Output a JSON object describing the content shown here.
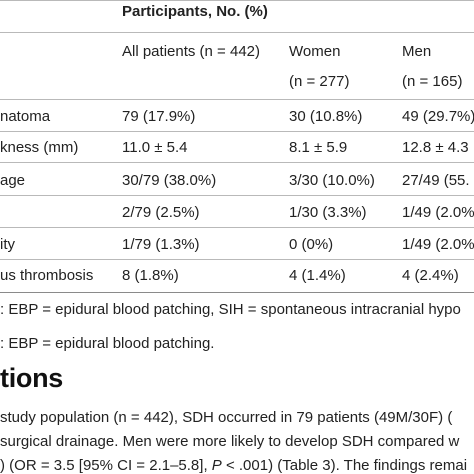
{
  "table": {
    "header_group": "Participants, No. (%)",
    "columns": {
      "all": "All patients (n = 442)",
      "women": "Women",
      "women_n": "(n = 277)",
      "men": "Men",
      "men_n": "(n = 165)"
    },
    "rows": [
      {
        "label": "natoma",
        "all": "79 (17.9%)",
        "women": "30 (10.8%)",
        "men": "49 (29.7%)"
      },
      {
        "label": "kness (mm)",
        "all": "11.0 ± 5.4",
        "women": "8.1 ± 5.9",
        "men": "12.8 ± 4.3"
      },
      {
        "label": "age",
        "all": "30/79 (38.0%)",
        "women": "3/30 (10.0%)",
        "men": "27/49 (55."
      },
      {
        "label": "",
        "all": "2/79 (2.5%)",
        "women": "1/30 (3.3%)",
        "men": "1/49 (2.0%"
      },
      {
        "label": "ity",
        "all": "1/79 (1.3%)",
        "women": "0 (0%)",
        "men": "1/49 (2.0%"
      },
      {
        "label": "us thrombosis",
        "all": "8 (1.8%)",
        "women": "4 (1.4%)",
        "men": "4 (2.4%)"
      }
    ],
    "footnote1": ": EBP = epidural blood patching, SIH = spontaneous intracranial hypo",
    "footnote2": ": EBP = epidural blood patching."
  },
  "section": {
    "heading": "tions",
    "line1": "study population (n = 442), SDH occurred in 79 patients (49M/30F) (",
    "line2": "surgical drainage. Men were more likely to develop SDH compared w",
    "line3_a": ") (OR = 3.5 [95% CI = 2.1–5.8], ",
    "line3_p": "P",
    "line3_b": " < .001) (Table 3). The findings remai"
  }
}
